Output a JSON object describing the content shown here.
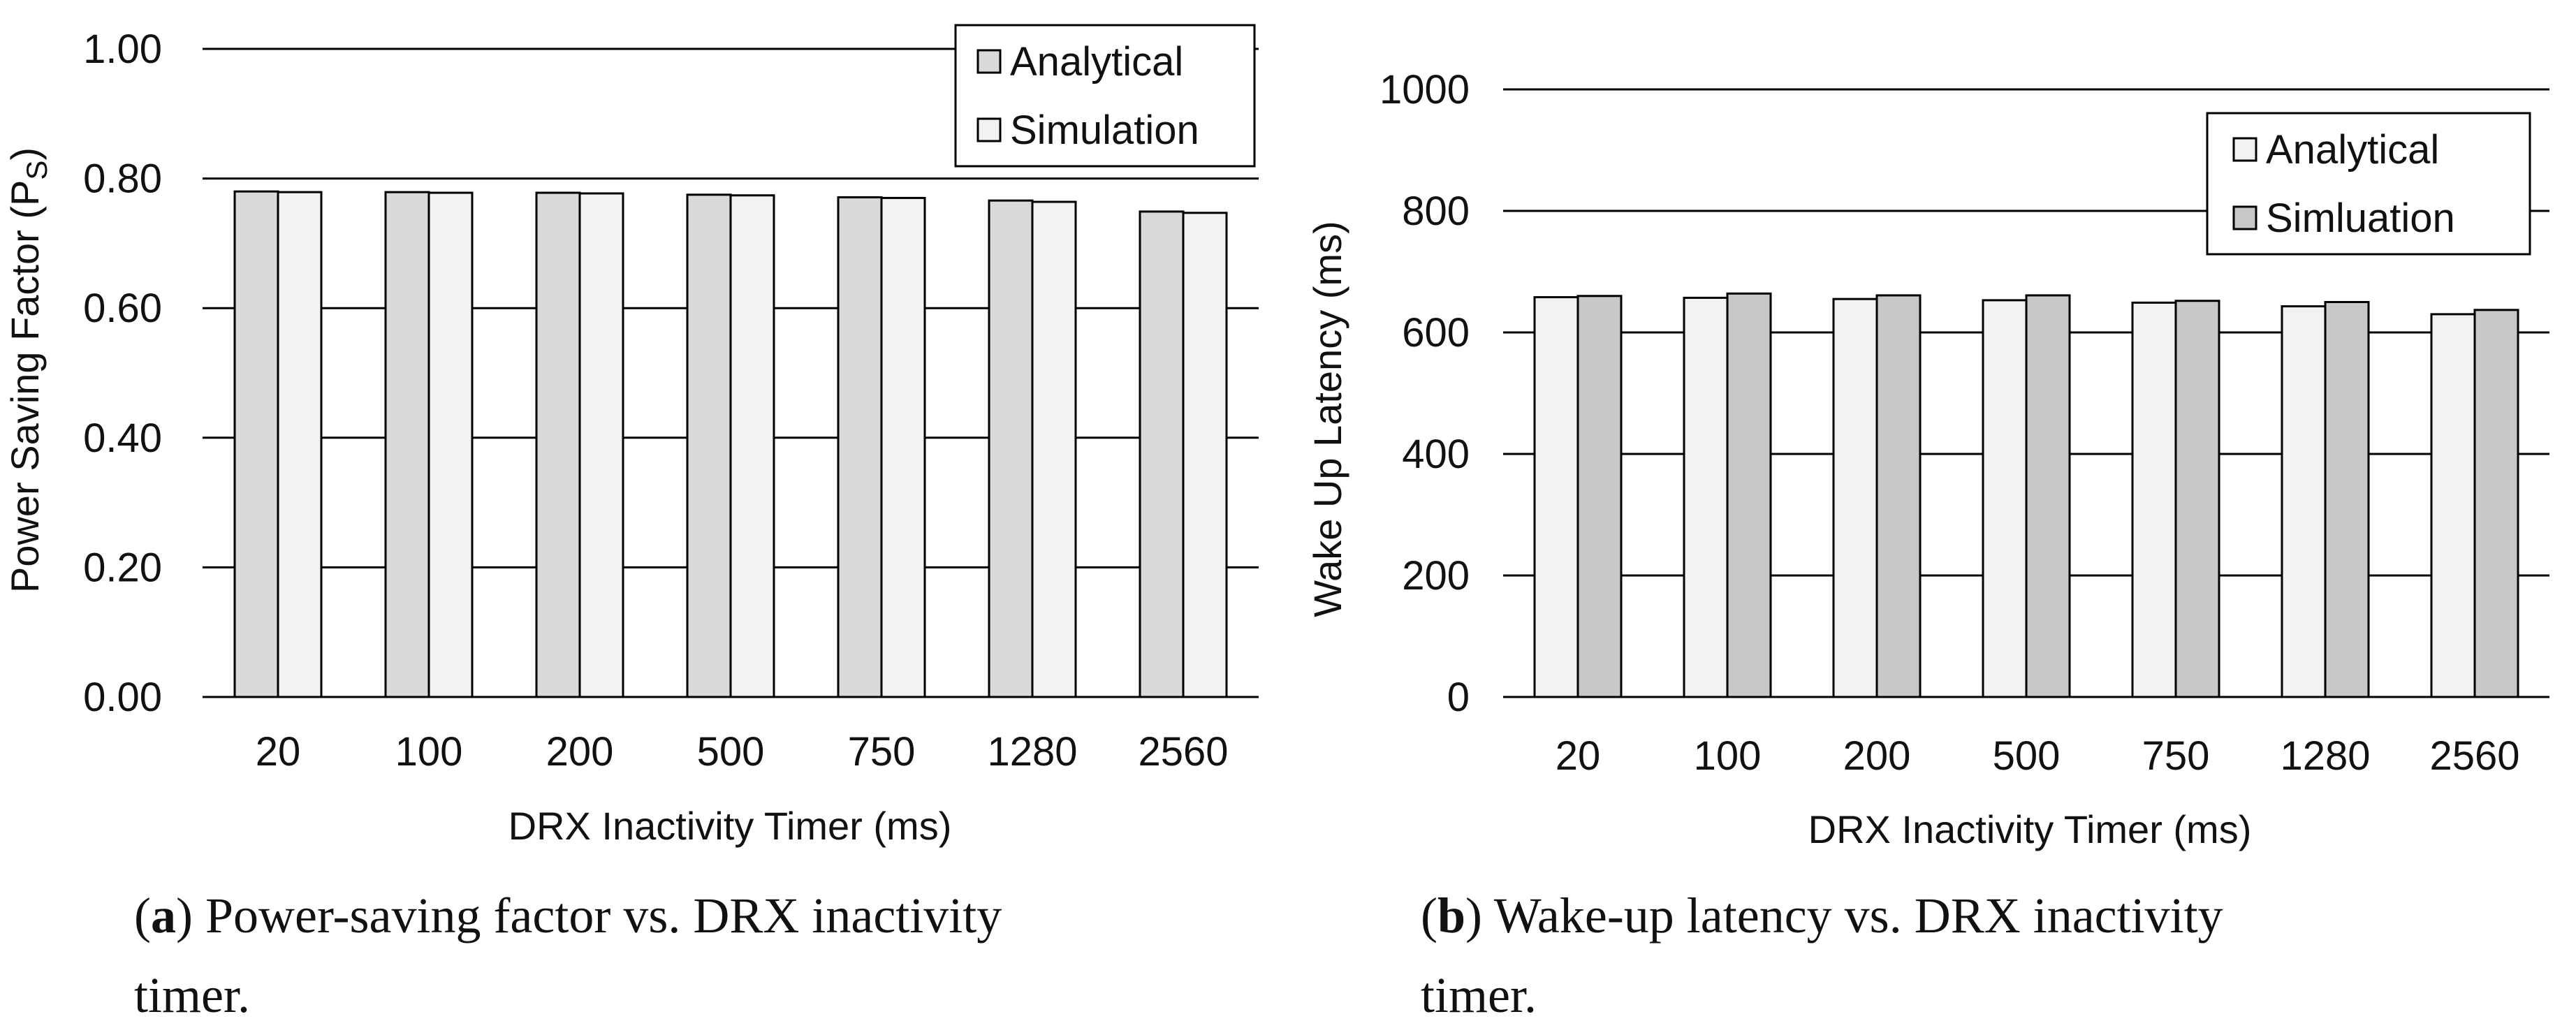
{
  "colors": {
    "light_bar": "#f2f2f2",
    "dark_bar": "#d9d9d9",
    "dark_bar_b": "#c8c8c8",
    "stroke": "#000000"
  },
  "chart_data": [
    {
      "type": "bar",
      "panel": "a",
      "categories": [
        "20",
        "100",
        "200",
        "500",
        "750",
        "1280",
        "2560"
      ],
      "series": [
        {
          "name": "Analytical",
          "values": [
            0.78,
            0.779,
            0.778,
            0.775,
            0.771,
            0.766,
            0.749
          ],
          "color": "#d9d9d9"
        },
        {
          "name": "Simulation",
          "values": [
            0.779,
            0.778,
            0.777,
            0.774,
            0.77,
            0.764,
            0.747
          ],
          "color": "#f2f2f2"
        }
      ],
      "ylim": [
        0,
        1.0
      ],
      "yticks": [
        "0.00",
        "0.20",
        "0.40",
        "0.60",
        "0.80",
        "1.00"
      ],
      "ytick_values": [
        0,
        0.2,
        0.4,
        0.6,
        0.8,
        1.0
      ],
      "ylabel": "Power Saving Factor (P",
      "ylabel_sub": "S",
      "ylabel_end": ")",
      "xlabel": "DRX Inactivity Timer (ms)",
      "legend": [
        "Analytical",
        "Simulation"
      ],
      "legend_position": "top-right",
      "caption_label": "a",
      "caption_line1": " Power-saving factor vs.  DRX inactivity",
      "caption_line2": "timer."
    },
    {
      "type": "bar",
      "panel": "b",
      "categories": [
        "20",
        "100",
        "200",
        "500",
        "750",
        "1280",
        "2560"
      ],
      "series": [
        {
          "name": "Analytical",
          "values": [
            658,
            657,
            655,
            653,
            649,
            643,
            630
          ],
          "color": "#f2f2f2"
        },
        {
          "name": "Simluation",
          "values": [
            660,
            664,
            661,
            661,
            652,
            650,
            637
          ],
          "color": "#c8c8c8"
        }
      ],
      "ylim": [
        0,
        1000
      ],
      "yticks": [
        "0",
        "200",
        "400",
        "600",
        "800",
        "1000"
      ],
      "ytick_values": [
        0,
        200,
        400,
        600,
        800,
        1000
      ],
      "ylabel": "Wake Up Latency (ms)",
      "xlabel": "DRX Inactivity Timer (ms)",
      "legend": [
        "Analytical",
        "Simluation"
      ],
      "legend_position": "top-right",
      "caption_label": "b",
      "caption_line1": " Wake-up  latency  vs.   DRX  inactivity",
      "caption_line2": "timer."
    }
  ]
}
